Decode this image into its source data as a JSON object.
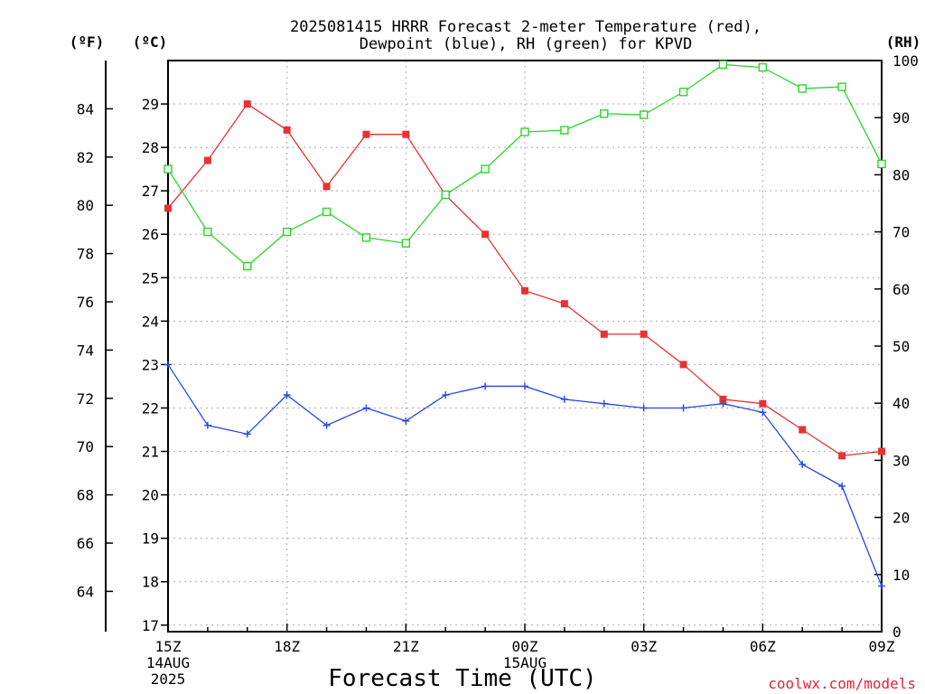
{
  "chart_data": {
    "type": "line",
    "title": "2025081415 HRRR Forecast 2-meter Temperature (red),",
    "subtitle": "Dewpoint (blue), RH (green) for KPVD",
    "xlabel": "Forecast Time (UTC)",
    "credit": "coolwx.com/models",
    "units": {
      "f": "(ºF)",
      "c": "(ºC)",
      "rh": "(RH)"
    },
    "x": [
      "15Z",
      "16Z",
      "17Z",
      "18Z",
      "19Z",
      "20Z",
      "21Z",
      "22Z",
      "23Z",
      "00Z",
      "01Z",
      "02Z",
      "03Z",
      "04Z",
      "05Z",
      "06Z",
      "07Z",
      "08Z",
      "09Z"
    ],
    "x_tick_labels": [
      {
        "idx": 0,
        "lines": [
          "15Z",
          "14AUG",
          "2025"
        ]
      },
      {
        "idx": 3,
        "lines": [
          "18Z"
        ]
      },
      {
        "idx": 6,
        "lines": [
          "21Z"
        ]
      },
      {
        "idx": 9,
        "lines": [
          "00Z",
          "15AUG"
        ]
      },
      {
        "idx": 12,
        "lines": [
          "03Z"
        ]
      },
      {
        "idx": 15,
        "lines": [
          "06Z"
        ]
      },
      {
        "idx": 18,
        "lines": [
          "09Z"
        ]
      }
    ],
    "yaxis_c": {
      "ylim": [
        16.85,
        30.0
      ],
      "ticks": [
        17,
        18,
        19,
        20,
        21,
        22,
        23,
        24,
        25,
        26,
        27,
        28,
        29
      ]
    },
    "yaxis_f": {
      "ticks": [
        64,
        66,
        68,
        70,
        72,
        74,
        76,
        78,
        80,
        82,
        84
      ]
    },
    "yaxis_rh": {
      "ylim": [
        0,
        100
      ],
      "ticks": [
        0,
        10,
        20,
        30,
        40,
        50,
        60,
        70,
        80,
        90,
        100
      ]
    },
    "grid": true,
    "series": [
      {
        "name": "Temperature",
        "axis": "c",
        "color": "#e83232",
        "marker": "filled-square",
        "values": [
          26.6,
          27.7,
          29.0,
          28.4,
          27.1,
          28.3,
          28.3,
          26.9,
          26.0,
          24.7,
          24.4,
          23.7,
          23.7,
          23.0,
          22.2,
          22.1,
          21.5,
          20.9,
          21.0
        ]
      },
      {
        "name": "Dewpoint",
        "axis": "c",
        "color": "#2846e6",
        "marker": "plus",
        "values": [
          23.0,
          21.6,
          21.4,
          22.3,
          21.6,
          22.0,
          21.7,
          22.3,
          22.5,
          22.5,
          22.2,
          22.1,
          22.0,
          22.0,
          22.1,
          21.9,
          20.7,
          20.2,
          17.9
        ]
      },
      {
        "name": "RH",
        "axis": "rh",
        "color": "#2ad62a",
        "marker": "open-square",
        "values": [
          81.0,
          70.0,
          64.0,
          70.0,
          73.5,
          69.0,
          68.0,
          76.5,
          81.0,
          87.5,
          87.8,
          90.7,
          90.5,
          94.5,
          99.3,
          98.8,
          95.1,
          95.4,
          81.9
        ]
      }
    ]
  }
}
